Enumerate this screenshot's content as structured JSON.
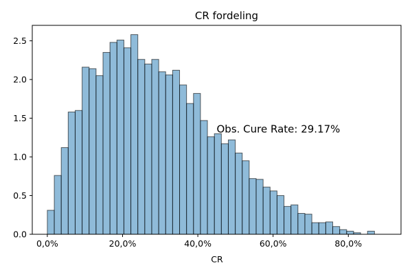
{
  "chart_data": {
    "type": "bar",
    "title": "CR fordeling",
    "xlabel": "CR",
    "ylabel": "",
    "xlim": [
      -0.04,
      0.94
    ],
    "ylim": [
      0,
      2.7
    ],
    "bin_edges": [
      0.0,
      0.0185,
      0.037,
      0.0555,
      0.074,
      0.0925,
      0.111,
      0.1295,
      0.148,
      0.1665,
      0.185,
      0.2035,
      0.222,
      0.2405,
      0.259,
      0.2775,
      0.296,
      0.3145,
      0.333,
      0.3515,
      0.37,
      0.3885,
      0.407,
      0.4255,
      0.444,
      0.4625,
      0.481,
      0.4995,
      0.518,
      0.5365,
      0.555,
      0.5735,
      0.592,
      0.6105,
      0.629,
      0.6475,
      0.666,
      0.6845,
      0.703,
      0.7215,
      0.74,
      0.7585,
      0.777,
      0.7955,
      0.814,
      0.8325,
      0.851,
      0.8695,
      0.888
    ],
    "values": [
      0.31,
      0.76,
      1.12,
      1.58,
      1.6,
      2.16,
      2.14,
      2.05,
      2.35,
      2.48,
      2.51,
      2.41,
      2.58,
      2.26,
      2.2,
      2.26,
      2.1,
      2.06,
      2.12,
      1.93,
      1.69,
      1.82,
      1.47,
      1.26,
      1.3,
      1.17,
      1.22,
      1.05,
      0.95,
      0.72,
      0.71,
      0.61,
      0.56,
      0.5,
      0.36,
      0.38,
      0.27,
      0.26,
      0.15,
      0.15,
      0.16,
      0.1,
      0.06,
      0.04,
      0.02,
      0.0,
      0.04,
      0.0
    ],
    "xticks": [
      {
        "value": 0.0,
        "label": "0,0%"
      },
      {
        "value": 0.2,
        "label": "20,0%"
      },
      {
        "value": 0.4,
        "label": "40,0%"
      },
      {
        "value": 0.6,
        "label": "60,0%"
      },
      {
        "value": 0.8,
        "label": "80,0%"
      }
    ],
    "yticks": [
      {
        "value": 0.0,
        "label": "0.0"
      },
      {
        "value": 0.5,
        "label": "0.5"
      },
      {
        "value": 1.0,
        "label": "1.0"
      },
      {
        "value": 1.5,
        "label": "1.5"
      },
      {
        "value": 2.0,
        "label": "2.0"
      },
      {
        "value": 2.5,
        "label": "2.5"
      }
    ],
    "annotation": {
      "text": "Obs. Cure Rate: 29.17%",
      "x": 0.45,
      "y": 1.36
    },
    "bar_color": "#1f77b4",
    "bar_alpha": 0.5,
    "edge_color": "#000000",
    "grid": false,
    "legend": "none"
  }
}
